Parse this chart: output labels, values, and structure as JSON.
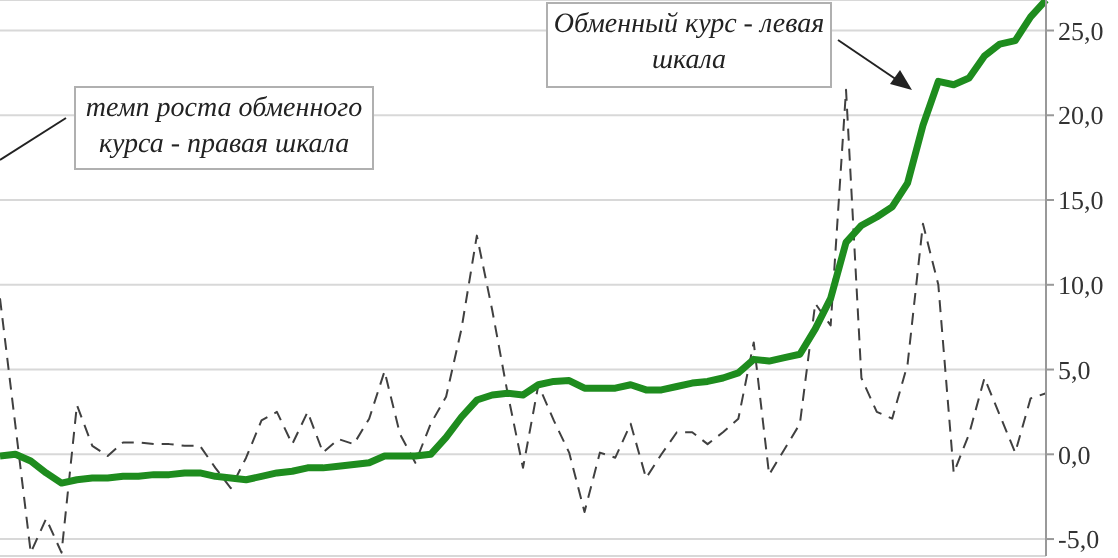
{
  "chart_data": {
    "type": "line",
    "categories": [
      null,
      null,
      null,
      null,
      null,
      null,
      null,
      null,
      null,
      null,
      null,
      null,
      null,
      null,
      null,
      null,
      null,
      null,
      null,
      null,
      null,
      null,
      null,
      null,
      null,
      null,
      null,
      null,
      null,
      null,
      null,
      null,
      null,
      null,
      null,
      null,
      null,
      null,
      null,
      null,
      null,
      null,
      null,
      null,
      null,
      null,
      null,
      null,
      null,
      null,
      null,
      null,
      null,
      null,
      null,
      null,
      null,
      null,
      null,
      null,
      null,
      null,
      null,
      null,
      null,
      null,
      null,
      null,
      null
    ],
    "ylim": [
      -6,
      26.8
    ],
    "yticks": [
      {
        "value": -5,
        "label": "-5,0"
      },
      {
        "value": 0,
        "label": "0,0"
      },
      {
        "value": 5,
        "label": "5,0"
      },
      {
        "value": 10,
        "label": "10,0"
      },
      {
        "value": 15,
        "label": "15,0"
      },
      {
        "value": 20,
        "label": "20,0"
      },
      {
        "value": 25,
        "label": "25,0"
      }
    ],
    "grid": true,
    "marker": "none",
    "annotations": [
      "темп роста обменного курса - правая шкала",
      "Обменный курс - левая шкала"
    ],
    "series": [
      {
        "color": "#404040",
        "line_style": "dashed",
        "values": [
          9.2,
          1.7,
          -5.8,
          -3.8,
          -5.8,
          2.9,
          0.5,
          -0.1,
          0.7,
          0.7,
          0.6,
          0.6,
          0.5,
          0.5,
          -0.8,
          -2.0,
          -0.2,
          2.0,
          2.5,
          0.6,
          2.5,
          0.1,
          0.9,
          0.6,
          2.1,
          4.9,
          1.2,
          -0.5,
          1.8,
          3.4,
          7.4,
          12.9,
          8.5,
          3.6,
          -0.8,
          4.1,
          2.0,
          0.1,
          -3.4,
          0.1,
          -0.2,
          1.8,
          -1.4,
          0,
          1.3,
          1.3,
          0.6,
          1.3,
          2.1,
          6.6,
          -1.2,
          0.3,
          1.8,
          8.9,
          7.6,
          21.5,
          4.5,
          2.5,
          2.1,
          5.3,
          13.6,
          10.0,
          -1.1,
          1.2,
          4.5,
          2.3,
          0.1,
          3.3,
          3.6
        ]
      },
      {
        "color": "#1e8c1e",
        "line_style": "solid",
        "values": [
          -0.1,
          0,
          -0.4,
          -1.1,
          -1.7,
          -1.5,
          -1.4,
          -1.4,
          -1.3,
          -1.3,
          -1.2,
          -1.2,
          -1.1,
          -1.1,
          -1.3,
          -1.4,
          -1.5,
          -1.3,
          -1.1,
          -1.0,
          -0.8,
          -0.8,
          -0.7,
          -0.6,
          -0.5,
          -0.1,
          -0.1,
          -0.1,
          0,
          1.0,
          2.2,
          3.2,
          3.5,
          3.6,
          3.5,
          4.1,
          4.3,
          4.35,
          3.9,
          3.9,
          3.9,
          4.1,
          3.8,
          3.8,
          4.0,
          4.2,
          4.3,
          4.5,
          4.8,
          5.6,
          5.5,
          5.7,
          5.9,
          7.4,
          9.2,
          12.5,
          13.5,
          14.0,
          14.6,
          16,
          19.4,
          22,
          21.8,
          22.2,
          23.5,
          24.2,
          24.4,
          25.8,
          26.8
        ]
      }
    ]
  }
}
